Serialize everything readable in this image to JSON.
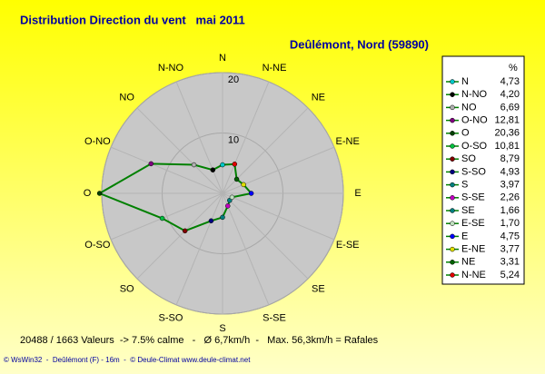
{
  "chart_data": {
    "type": "radar",
    "title": "Distribution Direction du vent   mai 2011",
    "subtitle": "Deûlémont, Nord (59890)",
    "legend_header": "%",
    "categories": [
      "N",
      "N-NO",
      "NO",
      "O-NO",
      "O",
      "O-SO",
      "SO",
      "S-SO",
      "S",
      "S-SE",
      "SE",
      "E-SE",
      "E",
      "E-NE",
      "NE",
      "N-NE"
    ],
    "values": [
      4.73,
      4.2,
      6.69,
      12.81,
      20.36,
      10.81,
      8.79,
      4.93,
      3.97,
      2.26,
      1.66,
      1.7,
      4.75,
      3.77,
      3.31,
      5.24
    ],
    "value_labels": [
      "4,73",
      "4,20",
      "6,69",
      "12,81",
      "20,36",
      "10,81",
      "8,79",
      "4,93",
      "3,97",
      "2,26",
      "1,66",
      "1,70",
      "4,75",
      "3,77",
      "3,31",
      "5,24"
    ],
    "point_colors": [
      "#00c8c8",
      "#000000",
      "#b0b0b0",
      "#800080",
      "#004000",
      "#00c040",
      "#800000",
      "#000080",
      "#008080",
      "#c000c0",
      "#008080",
      "#c0e0c0",
      "#0000ff",
      "#e0e000",
      "#006000",
      "#e00000"
    ],
    "color": "#008000",
    "rlim": [
      0,
      20
    ],
    "rticks": [
      10,
      20
    ],
    "annotations": [
      "20488 / 1663 Valeurs  -> 7.5% calme   -   Ø 6,7km/h  -   Max. 56,3km/h = Rafales",
      "© WsWin32  -  Deûlémont (F) - 16m  -  © Deule-Climat www.deule-climat.net"
    ]
  }
}
